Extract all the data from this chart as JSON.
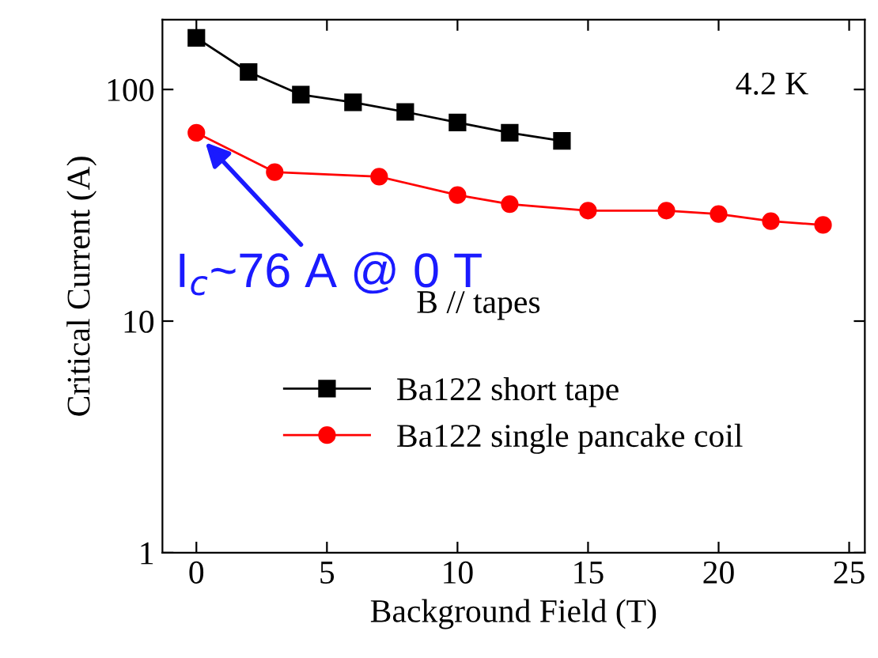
{
  "chart_data": {
    "type": "line",
    "xlabel": "Background Field (T)",
    "ylabel": "Critical Current (A)",
    "log": "y",
    "xlim": [
      -1.3,
      25.6
    ],
    "xticks": [
      0,
      5,
      10,
      15,
      20,
      25
    ],
    "ylim": [
      1,
      200
    ],
    "yticks": [
      1,
      10,
      100
    ],
    "legend": "bottom",
    "grid": false,
    "series": [
      {
        "name": "Ba122 short tape",
        "color": "#000000",
        "marker": "square",
        "x": [
          0,
          2,
          4,
          6,
          8,
          10,
          12,
          14
        ],
        "values": [
          167,
          119,
          95,
          88,
          80,
          72,
          65,
          60
        ]
      },
      {
        "name": "Ba122 single pancake coil",
        "color": "#ff0000",
        "marker": "circle",
        "x": [
          0,
          3,
          7,
          10,
          12,
          15,
          18,
          20,
          22,
          24
        ],
        "values": [
          65,
          44,
          42,
          35,
          32,
          30,
          30,
          29,
          27,
          26
        ]
      }
    ],
    "annotations": [
      "4.2 K",
      "B // tapes",
      {
        "text": "I$_{c}$~76 A @ 0 T",
        "x": 0,
        "y": 65
      }
    ]
  }
}
